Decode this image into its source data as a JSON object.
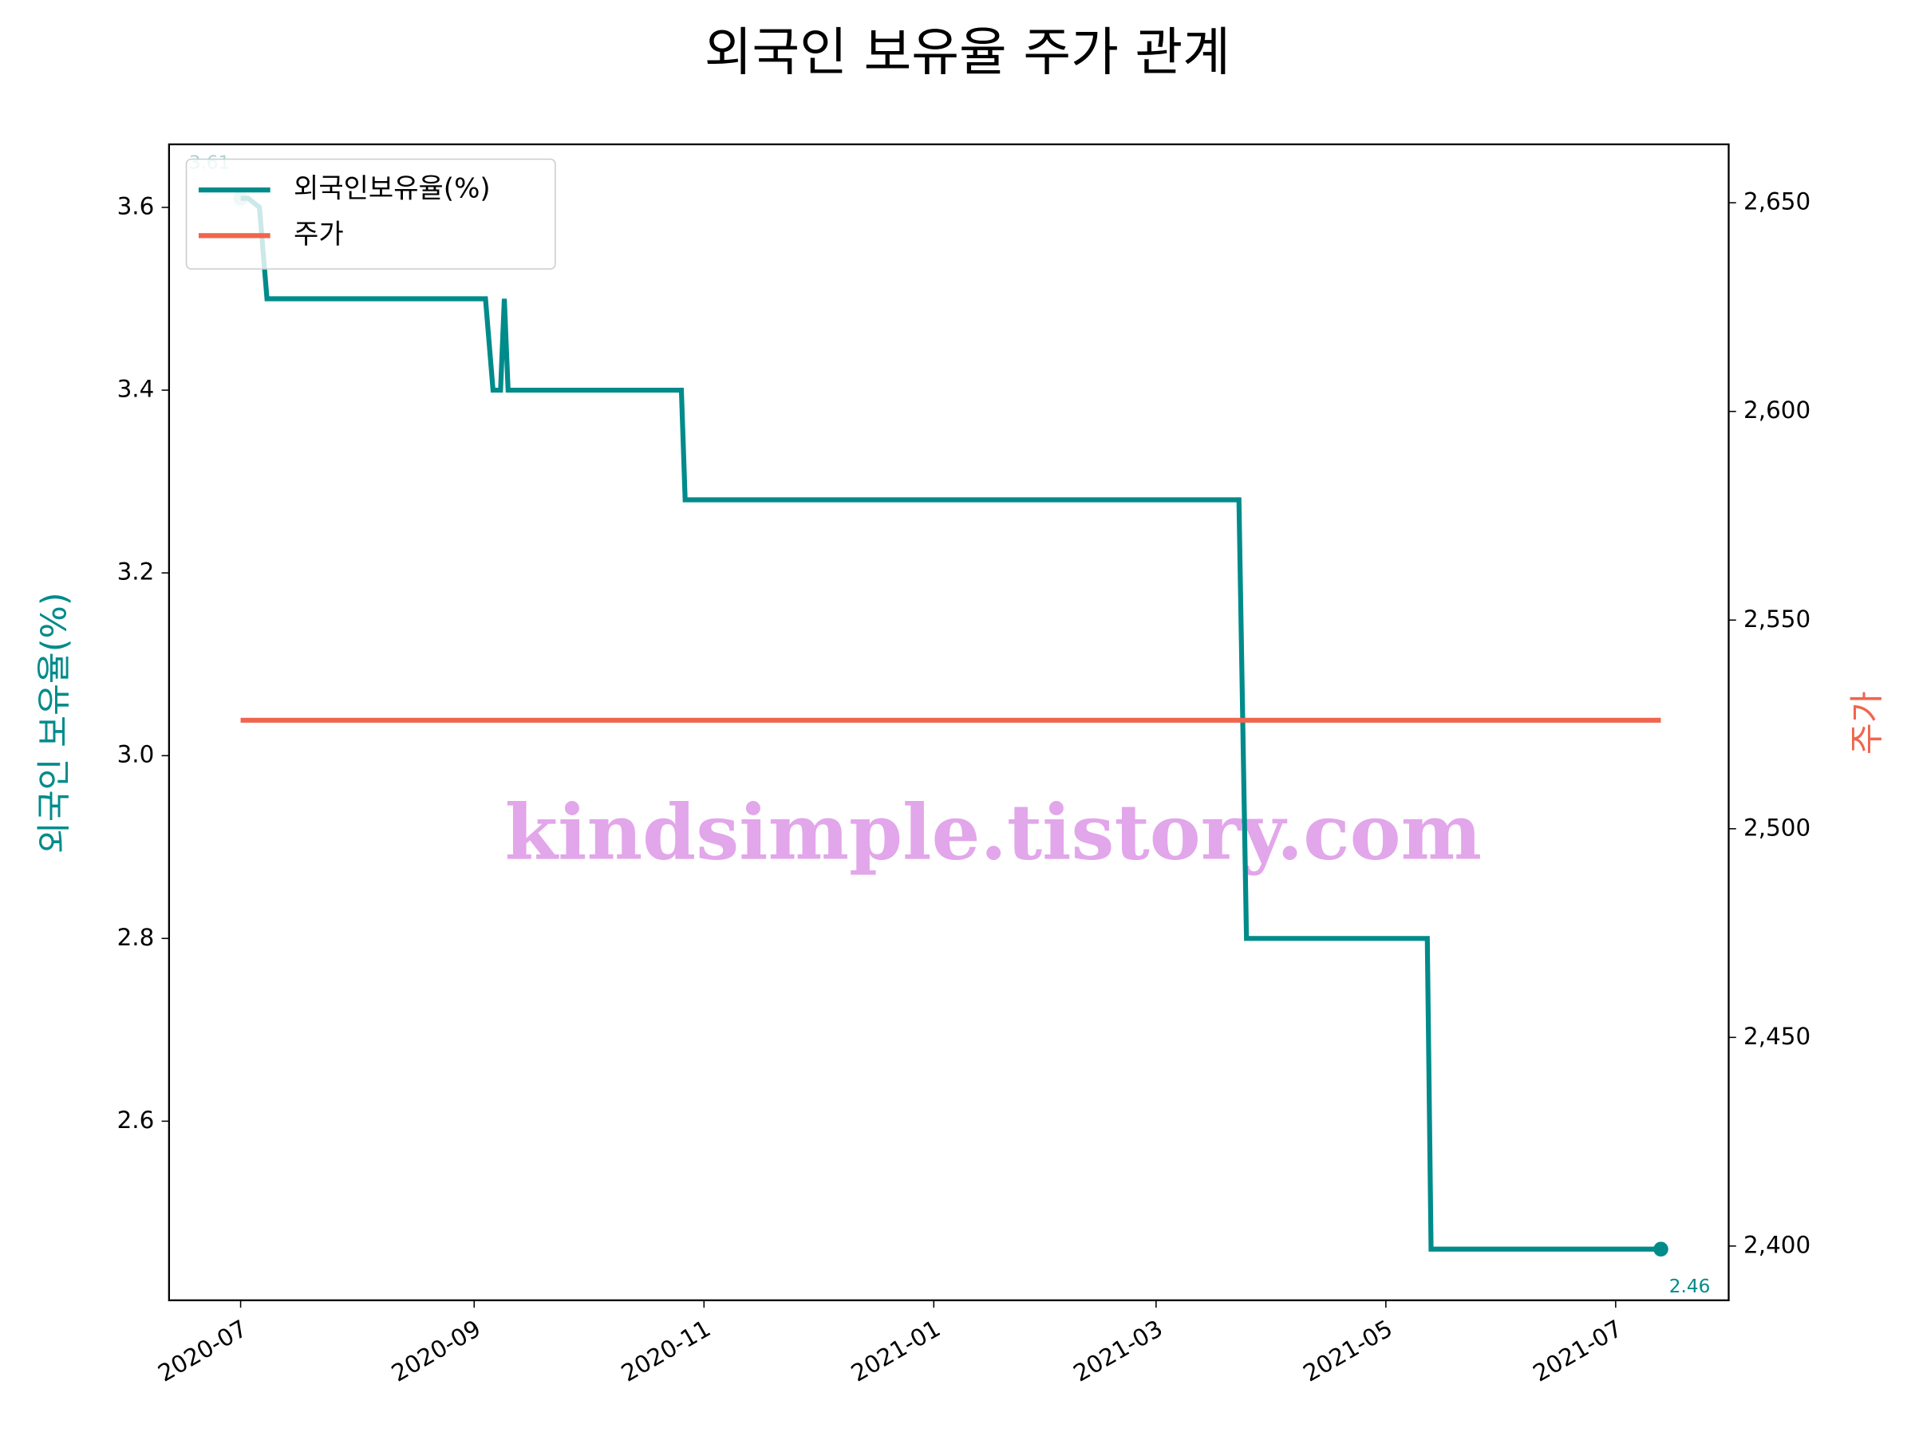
{
  "chart_data": {
    "type": "line",
    "title": "외국인 보유율 주가 관계",
    "y_label": "외국인 보유율(%)",
    "y2_label": "주가",
    "watermark": "kindsimple.tistory.com",
    "x": [
      "2020-07-01",
      "2020-07-03",
      "2020-07-06",
      "2020-07-08",
      "2020-09-04",
      "2020-09-06",
      "2020-09-08",
      "2020-09-09",
      "2020-09-10",
      "2020-10-26",
      "2020-10-27",
      "2021-03-23",
      "2021-03-25",
      "2021-05-12",
      "2021-05-13",
      "2021-07-13"
    ],
    "series": [
      {
        "name": "외국인보유율(%)",
        "color": "#008b8b",
        "axis": "y",
        "values": [
          3.61,
          3.61,
          3.6,
          3.5,
          3.5,
          3.4,
          3.4,
          3.5,
          3.4,
          3.4,
          3.28,
          3.28,
          2.8,
          2.8,
          2.46,
          2.46
        ]
      },
      {
        "name": "주가",
        "color": "#f0654d",
        "axis": "y2",
        "values": [
          2526,
          2526,
          2526,
          2526,
          2526,
          2526,
          2526,
          2526,
          2526,
          2526,
          2526,
          2526,
          2526,
          2526,
          2526,
          2526
        ]
      }
    ],
    "xlim": [
      "2020-06-12",
      "2021-07-31"
    ],
    "xticks": [
      {
        "value": "2020-07-01",
        "label": "2020-07"
      },
      {
        "value": "2020-09-01",
        "label": "2020-09"
      },
      {
        "value": "2020-11-01",
        "label": "2020-11"
      },
      {
        "value": "2021-01-01",
        "label": "2021-01"
      },
      {
        "value": "2021-03-01",
        "label": "2021-03"
      },
      {
        "value": "2021-05-01",
        "label": "2021-05"
      },
      {
        "value": "2021-07-01",
        "label": "2021-07"
      }
    ],
    "ylim": [
      2.404,
      3.669
    ],
    "yticks": [
      2.6,
      2.8,
      {
        "value": 3,
        "label": "3.0"
      },
      3.2,
      3.4,
      3.6
    ],
    "y2lim": [
      2387,
      2664
    ],
    "y2ticks": [
      {
        "value": 2400,
        "label": "2,400"
      },
      {
        "value": 2450,
        "label": "2,450"
      },
      {
        "value": 2500,
        "label": "2,500"
      },
      {
        "value": 2550,
        "label": "2,550"
      },
      {
        "value": 2600,
        "label": "2,600"
      },
      {
        "value": 2650,
        "label": "2,650"
      }
    ],
    "legend": "upper left",
    "grid": false
  }
}
